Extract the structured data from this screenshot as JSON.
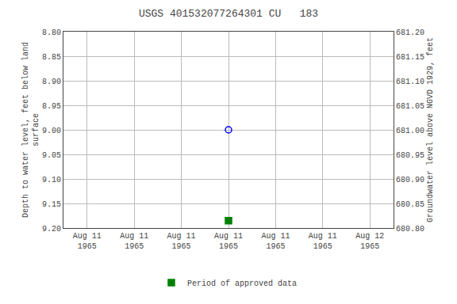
{
  "chart_data": {
    "type": "scatter",
    "title": "USGS 401532077264301 CU   183",
    "y_label": "Depth to water level, feet below land\nsurface",
    "y2_label": "Groundwater level above NGVD 1929, feet",
    "categories": [
      "Aug 11\n1965",
      "Aug 11\n1965",
      "Aug 11\n1965",
      "Aug 11\n1965",
      "Aug 11\n1965",
      "Aug 11\n1965",
      "Aug 12\n1965"
    ],
    "series": [
      {
        "values": [
          null,
          null,
          null,
          9.0,
          null,
          null,
          null
        ],
        "color": "blue",
        "marker": "circle-open"
      },
      {
        "name": "Period of approved data",
        "values": [
          null,
          null,
          null,
          9.185,
          null,
          null,
          null
        ],
        "color": "green",
        "marker": "square"
      }
    ],
    "ylim": [
      9.2,
      8.8
    ],
    "yticks": [
      {
        "value": 8.8,
        "label": "8.80"
      },
      8.85,
      {
        "value": 8.9,
        "label": "8.90"
      },
      8.95,
      {
        "value": 9.0,
        "label": "9.00"
      },
      9.05,
      {
        "value": 9.1,
        "label": "9.10"
      },
      9.15,
      {
        "value": 9.2,
        "label": "9.20"
      }
    ],
    "y2lim": [
      680.8,
      681.2
    ],
    "y2ticks": [
      {
        "value": 681.2,
        "label": "681.20"
      },
      681.15,
      {
        "value": 681.1,
        "label": "681.10"
      },
      681.05,
      {
        "value": 681.0,
        "label": "681.00"
      },
      680.95,
      {
        "value": 680.9,
        "label": "680.90"
      },
      680.85,
      {
        "value": 680.8,
        "label": "680.80"
      }
    ],
    "grid": true,
    "legend": "bottom"
  }
}
